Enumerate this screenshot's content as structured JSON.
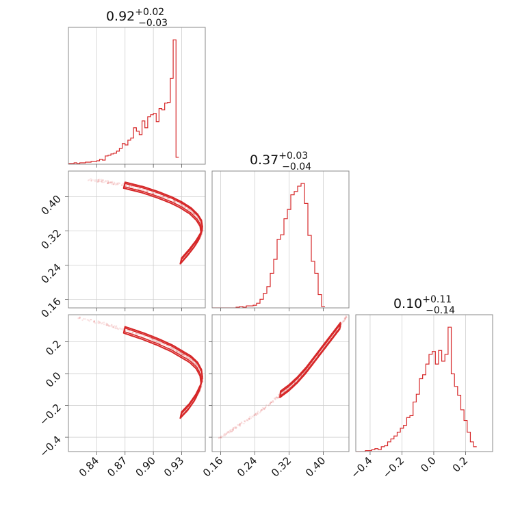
{
  "colors": {
    "accent": "#d62728",
    "grid": "#cfcfcf",
    "frame": "#8a8a8a"
  },
  "chart_data": {
    "type": "corner",
    "grid": true,
    "parameters": [
      {
        "ticks": [
          0.84,
          0.87,
          0.9,
          0.93
        ],
        "tick_labels": [
          "0.84",
          "0.87",
          "0.90",
          "0.93"
        ],
        "range": [
          0.81,
          0.955
        ],
        "title": {
          "value": "0.92",
          "plus": "+0.02",
          "minus": "−0.03"
        },
        "hist_bins": {
          "start": 0.81,
          "width": 0.003
        },
        "hist": [
          1,
          1,
          2,
          1,
          2,
          2,
          3,
          3,
          4,
          4,
          5,
          7,
          6,
          12,
          13,
          15,
          16,
          19,
          23,
          30,
          28,
          35,
          38,
          53,
          48,
          43,
          63,
          53,
          69,
          72,
          74,
          62,
          81,
          79,
          89,
          90,
          125,
          181,
          10
        ]
      },
      {
        "ticks": [
          0.16,
          0.24,
          0.32,
          0.4
        ],
        "tick_labels": [
          "0.16",
          "0.24",
          "0.32",
          "0.40"
        ],
        "range": [
          0.14,
          0.46
        ],
        "title": {
          "value": "0.37",
          "plus": "+0.03",
          "minus": "−0.04"
        },
        "hist_bins": {
          "start": 0.14,
          "width": 0.008
        },
        "hist": [
          0,
          0,
          0,
          0,
          0,
          0,
          0,
          1,
          2,
          1,
          3,
          3,
          4,
          7,
          13,
          22,
          32,
          52,
          73,
          103,
          110,
          134,
          148,
          170,
          175,
          183,
          187,
          157,
          109,
          70,
          52,
          20,
          2
        ]
      },
      {
        "ticks": [
          -0.4,
          -0.2,
          0.0,
          0.2
        ],
        "tick_labels": [
          "−0.4",
          "−0.2",
          "0.0",
          "0.2"
        ],
        "range": [
          -0.49,
          0.37
        ],
        "title": {
          "value": "0.10",
          "plus": "+0.11",
          "minus": "−0.14"
        },
        "hist_bins": {
          "start": -0.49,
          "width": 0.02
        },
        "hist": [
          0,
          0,
          0,
          1,
          1,
          2,
          3,
          2,
          5,
          6,
          10,
          13,
          16,
          20,
          24,
          27,
          35,
          37,
          51,
          59,
          75,
          79,
          90,
          100,
          103,
          90,
          104,
          93,
          100,
          128,
          80,
          67,
          58,
          43,
          32,
          20,
          10,
          5
        ]
      }
    ],
    "pairs": [
      {
        "x_param": 0,
        "y_param": 1,
        "curve": [
          [
            0.83,
            0.441
          ],
          [
            0.85,
            0.435
          ],
          [
            0.87,
            0.427
          ],
          [
            0.89,
            0.416
          ],
          [
            0.905,
            0.405
          ],
          [
            0.92,
            0.392
          ],
          [
            0.93,
            0.381
          ],
          [
            0.94,
            0.367
          ],
          [
            0.947,
            0.352
          ],
          [
            0.951,
            0.338
          ],
          [
            0.952,
            0.323
          ],
          [
            0.95,
            0.308
          ],
          [
            0.945,
            0.29
          ],
          [
            0.938,
            0.27
          ],
          [
            0.93,
            0.25
          ]
        ],
        "contour_range": [
          0.87,
          0.952
        ],
        "contour_width": 0.007,
        "scatter_tail": [
          0.8,
          0.88
        ]
      },
      {
        "x_param": 0,
        "y_param": 2,
        "curve": [
          [
            0.82,
            0.35
          ],
          [
            0.85,
            0.31
          ],
          [
            0.87,
            0.275
          ],
          [
            0.89,
            0.235
          ],
          [
            0.905,
            0.2
          ],
          [
            0.92,
            0.16
          ],
          [
            0.93,
            0.125
          ],
          [
            0.94,
            0.09
          ],
          [
            0.947,
            0.05
          ],
          [
            0.951,
            0.005
          ],
          [
            0.952,
            -0.04
          ],
          [
            0.95,
            -0.09
          ],
          [
            0.945,
            -0.15
          ],
          [
            0.938,
            -0.21
          ],
          [
            0.93,
            -0.26
          ]
        ],
        "contour_range": [
          0.87,
          0.952
        ],
        "contour_width": 0.02,
        "scatter_tail": [
          0.82,
          0.88
        ]
      },
      {
        "x_param": 1,
        "y_param": 2,
        "curve": [
          [
            0.155,
            -0.41
          ],
          [
            0.2,
            -0.33
          ],
          [
            0.24,
            -0.26
          ],
          [
            0.28,
            -0.18
          ],
          [
            0.3,
            -0.13
          ],
          [
            0.32,
            -0.09
          ],
          [
            0.34,
            -0.04
          ],
          [
            0.36,
            0.02
          ],
          [
            0.38,
            0.09
          ],
          [
            0.4,
            0.16
          ],
          [
            0.42,
            0.23
          ],
          [
            0.44,
            0.3
          ],
          [
            0.455,
            0.36
          ]
        ],
        "contour_range": [
          0.3,
          0.44
        ],
        "contour_width": 0.02,
        "scatter_tail": [
          0.16,
          0.3
        ]
      }
    ]
  }
}
